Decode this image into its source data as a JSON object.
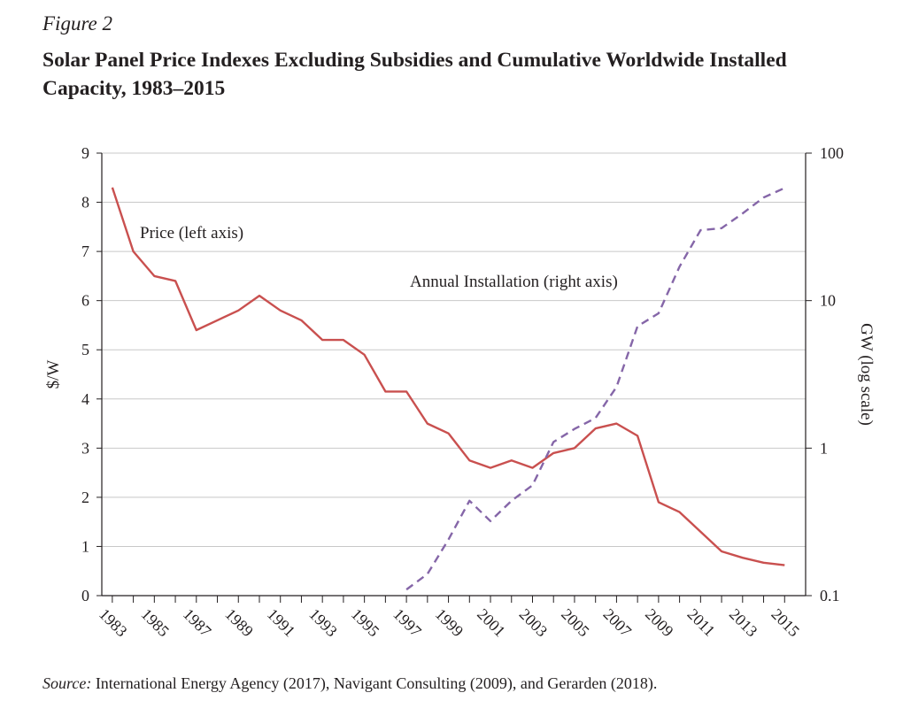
{
  "figure": {
    "label": "Figure 2",
    "title": "Solar Panel Price Indexes Excluding Subsidies and Cumulative Worldwide Installed Capacity, 1983–2015",
    "source_label": "Source:",
    "source_text": " International Energy Agency (2017), Navigant Consulting (2009), and Gerarden (2018)."
  },
  "chart_data": {
    "type": "line",
    "title": "Solar Panel Price Indexes Excluding Subsidies and Cumulative Worldwide Installed Capacity, 1983–2015",
    "xlim": [
      1982.5,
      2016
    ],
    "x_ticks": [
      1983,
      1985,
      1987,
      1989,
      1991,
      1993,
      1995,
      1997,
      1999,
      2001,
      2003,
      2005,
      2007,
      2009,
      2011,
      2013,
      2015
    ],
    "y_left": {
      "label": "$/W",
      "lim": [
        0,
        9
      ],
      "ticks": [
        0,
        1,
        2,
        3,
        4,
        5,
        6,
        7,
        8,
        9
      ]
    },
    "y_right": {
      "label": "GW (log scale)",
      "scale": "log",
      "lim": [
        0.1,
        100
      ],
      "ticks": [
        0.1,
        1,
        10,
        100
      ],
      "tick_labels": [
        "0.1",
        "1",
        "10",
        "100"
      ]
    },
    "grid": "horizontal",
    "colors": {
      "price": "#c9504f",
      "installation": "#8566a8",
      "grid": "#c8c8c8",
      "axis": "#231f20"
    },
    "series": [
      {
        "name": "Price (left axis)",
        "axis": "left",
        "style": "solid",
        "x": [
          1983,
          1984,
          1985,
          1986,
          1987,
          1988,
          1989,
          1990,
          1991,
          1992,
          1993,
          1994,
          1995,
          1996,
          1997,
          1998,
          1999,
          2000,
          2001,
          2002,
          2003,
          2004,
          2005,
          2006,
          2007,
          2008,
          2009,
          2010,
          2011,
          2012,
          2013,
          2014,
          2015
        ],
        "values": [
          8.3,
          7.0,
          6.5,
          6.4,
          5.4,
          5.6,
          5.8,
          6.1,
          5.8,
          5.6,
          5.2,
          5.2,
          4.9,
          4.15,
          4.15,
          3.5,
          3.3,
          2.75,
          2.6,
          2.75,
          2.6,
          2.9,
          3.0,
          3.4,
          3.5,
          3.25,
          1.9,
          1.7,
          1.3,
          0.9,
          0.77,
          0.67,
          0.62
        ]
      },
      {
        "name": "Annual Installation (right axis)",
        "axis": "right",
        "style": "dashed",
        "x": [
          1997,
          1998,
          1999,
          2000,
          2001,
          2002,
          2003,
          2004,
          2005,
          2006,
          2007,
          2008,
          2009,
          2010,
          2011,
          2012,
          2013,
          2014,
          2015
        ],
        "values": [
          0.11,
          0.14,
          0.24,
          0.44,
          0.32,
          0.44,
          0.56,
          1.1,
          1.35,
          1.6,
          2.6,
          6.7,
          8.2,
          17,
          30,
          31,
          39,
          50,
          58
        ]
      }
    ],
    "annotations": [
      {
        "text": "Price (left axis)",
        "series": 0
      },
      {
        "text": "Annual Installation (right axis)",
        "series": 1
      }
    ]
  }
}
